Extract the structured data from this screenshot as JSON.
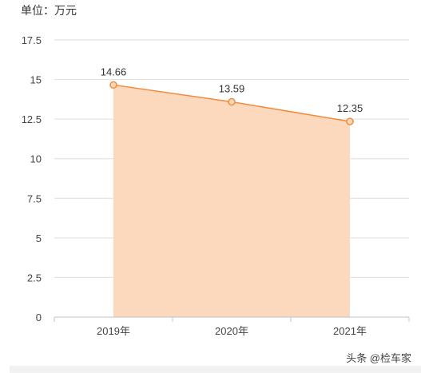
{
  "unit_label": "单位：万元",
  "watermark": "头条 @检车家",
  "colors": {
    "line": "#f08a3c",
    "fill": "#fcd9bd",
    "grid": "#dddddd",
    "axis": "#b8c4cc",
    "text": "#444444"
  },
  "chart_data": {
    "type": "area",
    "categories": [
      "2019年",
      "2020年",
      "2021年"
    ],
    "values": [
      14.66,
      13.59,
      12.35
    ],
    "data_labels": [
      "14.66",
      "13.59",
      "12.35"
    ],
    "ylim": [
      0,
      17.5
    ],
    "yticks": [
      "0",
      "2.5",
      "5",
      "7.5",
      "10",
      "12.5",
      "15",
      "17.5"
    ],
    "grid": true,
    "title": "",
    "xlabel": "",
    "ylabel": ""
  }
}
